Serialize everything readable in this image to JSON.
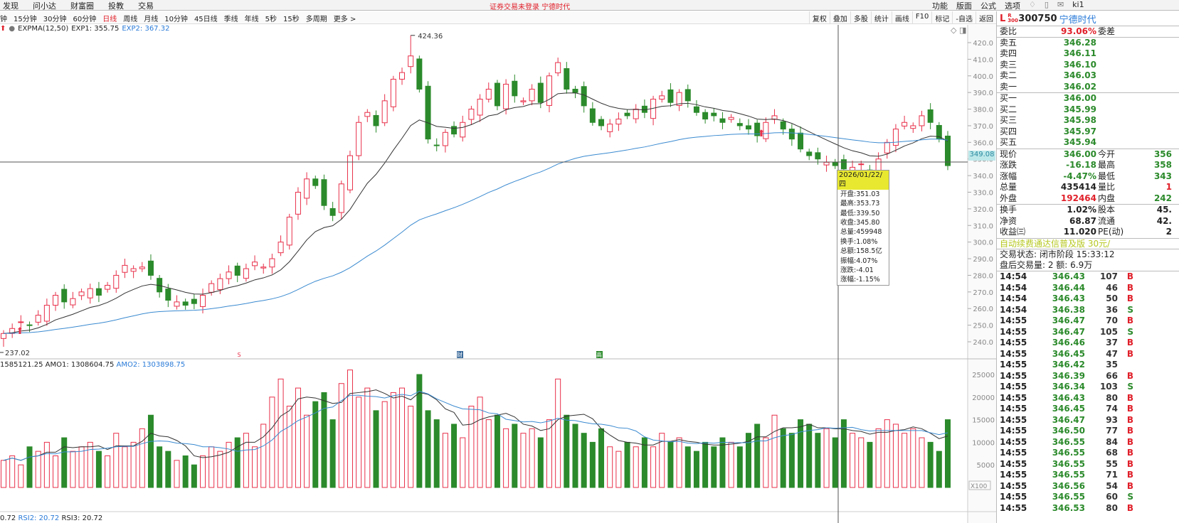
{
  "menu": {
    "left": [
      "发现",
      "问小达",
      "财富圈",
      "投教",
      "交易"
    ],
    "center": "证券交易未登录  宁德时代",
    "right": [
      "功能",
      "版面",
      "公式",
      "选项"
    ],
    "user": "ki1"
  },
  "periods": {
    "items": [
      "钟",
      "15分钟",
      "30分钟",
      "60分钟",
      "日线",
      "周线",
      "月线",
      "10分钟",
      "45日线",
      "季线",
      "年线",
      "5秒",
      "15秒",
      "多周期",
      "更多 >"
    ],
    "active": 4
  },
  "toolbar": [
    "复权",
    "叠加",
    "多股",
    "统计",
    "画线",
    "F10",
    "标记",
    "-自选",
    "返回"
  ],
  "indicator": {
    "name": "EXPMA(12,50)",
    "exp1": "EXP1: 355.75",
    "exp2": "EXP2: 367.32"
  },
  "volume_indicator": {
    "vol": "1585121.25",
    "amo1": "AMO1: 1308604.75",
    "amo2": "AMO2: 1303898.75"
  },
  "rsi": {
    "r1": "0.72",
    "r2": "RSI2: 20.72",
    "r3": "RSI3: 20.72"
  },
  "chart_data": {
    "type": "candlestick",
    "price_axis": {
      "min": 240,
      "max": 420,
      "step": 10,
      "ticks": [
        "420.0",
        "410.0",
        "400.0",
        "390.0",
        "380.0",
        "370.0",
        "360.0",
        "350.0",
        "340.0",
        "330.0",
        "320.0",
        "310.0",
        "300.0",
        "290.0",
        "280.0",
        "270.0",
        "260.0",
        "250.0",
        "240.0"
      ]
    },
    "volume_axis": {
      "ticks": [
        "25000",
        "20000",
        "15000",
        "10000",
        "5000"
      ],
      "unit": "X100"
    },
    "high_label": "424.36",
    "low_label": "237.02",
    "crosshair_price": "349.08",
    "closes": [
      245,
      248,
      252,
      250,
      256,
      262,
      268,
      264,
      266,
      270,
      272,
      268,
      274,
      280,
      286,
      284,
      285,
      280,
      270,
      265,
      264,
      262,
      263,
      268,
      275,
      278,
      282,
      280,
      284,
      288,
      285,
      290,
      300,
      315,
      330,
      338,
      334,
      322,
      316,
      335,
      352,
      372,
      378,
      370,
      385,
      398,
      402,
      412,
      392,
      362,
      358,
      366,
      365,
      372,
      380,
      386,
      392,
      382,
      395,
      388,
      385,
      392,
      384,
      400,
      408,
      392,
      390,
      382,
      372,
      370,
      371,
      374,
      376,
      380,
      378,
      386,
      388,
      384,
      390,
      385,
      378,
      374,
      376,
      372,
      375,
      370,
      368,
      364,
      372,
      376,
      368,
      362,
      356,
      352,
      350,
      348,
      346,
      344,
      345,
      347,
      342,
      350,
      360,
      368,
      372,
      370,
      376,
      372,
      362,
      346
    ],
    "volumes": [
      6000,
      7000,
      5000,
      9000,
      8000,
      10000,
      7000,
      11000,
      8000,
      9000,
      10000,
      8000,
      7000,
      12000,
      9000,
      10000,
      13000,
      16000,
      9000,
      8000,
      6000,
      7000,
      5000,
      7000,
      9000,
      8000,
      10000,
      11000,
      12000,
      9000,
      14000,
      20000,
      24000,
      18000,
      22000,
      16000,
      19000,
      21000,
      15000,
      23000,
      26000,
      20000,
      22000,
      17000,
      19000,
      21000,
      22000,
      18000,
      25000,
      17000,
      15000,
      12000,
      14000,
      11000,
      18000,
      20000,
      15000,
      16000,
      13000,
      14000,
      12000,
      13000,
      11000,
      15000,
      24000,
      16000,
      14000,
      12000,
      10000,
      13000,
      9000,
      8000,
      10000,
      9000,
      11000,
      9000,
      12000,
      10000,
      11000,
      9000,
      8000,
      10000,
      9000,
      11000,
      10000,
      9000,
      12000,
      14000,
      11000,
      16000,
      13000,
      12000,
      15000,
      14000,
      12000,
      13000,
      11000,
      15000,
      12000,
      11000,
      10000,
      13000,
      15000,
      14000,
      12000,
      13000,
      11000,
      10000,
      8000,
      15000
    ],
    "markers": [
      "S",
      "财",
      "高"
    ]
  },
  "tooltip": {
    "date": "2026/01/22/四",
    "lines": [
      "开盘:351.03",
      "最高:353.73",
      "最低:339.50",
      "收盘:345.80",
      "总量:459948",
      "换手:1.08%",
      "总额:158.5亿",
      "振幅:4.07%",
      "涨跌:-4.01",
      "涨幅:-1.15%"
    ]
  },
  "quote": {
    "code": "300750",
    "name": "宁德时代",
    "tag": "L",
    "sub": "R 300",
    "weibi": {
      "k": "委比",
      "v": "93.06%",
      "k2": "委差"
    },
    "sell": [
      {
        "k": "卖五",
        "v": "346.28"
      },
      {
        "k": "卖四",
        "v": "346.11"
      },
      {
        "k": "卖三",
        "v": "346.10"
      },
      {
        "k": "卖二",
        "v": "346.03"
      },
      {
        "k": "卖一",
        "v": "346.02"
      }
    ],
    "buy": [
      {
        "k": "买一",
        "v": "346.00"
      },
      {
        "k": "买二",
        "v": "345.99"
      },
      {
        "k": "买三",
        "v": "345.98"
      },
      {
        "k": "买四",
        "v": "345.97"
      },
      {
        "k": "买五",
        "v": "345.94"
      }
    ],
    "stats": [
      {
        "k": "现价",
        "v": "346.00",
        "k2": "今开",
        "v2": "356"
      },
      {
        "k": "涨跌",
        "v": "-16.18",
        "k2": "最高",
        "v2": "358"
      },
      {
        "k": "涨幅",
        "v": "-4.47%",
        "k2": "最低",
        "v2": "343"
      },
      {
        "k": "总量",
        "v": "435414",
        "k2": "量比",
        "v2": "1"
      },
      {
        "k": "外盘",
        "v": "192464",
        "k2": "内盘",
        "v2": "242"
      }
    ],
    "fund": [
      {
        "k": "换手",
        "v": "1.02%",
        "k2": "股本",
        "v2": "45."
      },
      {
        "k": "净资",
        "v": "68.87",
        "k2": "流通",
        "v2": "42."
      },
      {
        "k": "收益㈢",
        "v": "11.020",
        "k2": "PE(动)",
        "v2": "2"
      }
    ],
    "promo": "自动续费通达信普及版  30元/",
    "status": "交易状态: 闭市阶段  15:33:12",
    "after": "盘后交易量: 2  额: 6.9万",
    "ticks": [
      [
        "14:54",
        "346.43",
        "107",
        "B"
      ],
      [
        "14:54",
        "346.44",
        "46",
        "B"
      ],
      [
        "14:54",
        "346.43",
        "50",
        "B"
      ],
      [
        "14:54",
        "346.38",
        "36",
        "S"
      ],
      [
        "14:55",
        "346.47",
        "70",
        "B"
      ],
      [
        "14:55",
        "346.47",
        "105",
        "S"
      ],
      [
        "14:55",
        "346.46",
        "37",
        "B"
      ],
      [
        "14:55",
        "346.45",
        "47",
        "B"
      ],
      [
        "14:55",
        "346.42",
        "35",
        ""
      ],
      [
        "14:55",
        "346.39",
        "66",
        "B"
      ],
      [
        "14:55",
        "346.34",
        "103",
        "S"
      ],
      [
        "14:55",
        "346.43",
        "80",
        "B"
      ],
      [
        "14:55",
        "346.45",
        "74",
        "B"
      ],
      [
        "14:55",
        "346.47",
        "93",
        "B"
      ],
      [
        "14:55",
        "346.50",
        "77",
        "B"
      ],
      [
        "14:55",
        "346.55",
        "84",
        "B"
      ],
      [
        "14:55",
        "346.55",
        "68",
        "B"
      ],
      [
        "14:55",
        "346.55",
        "55",
        "B"
      ],
      [
        "14:55",
        "346.55",
        "71",
        "B"
      ],
      [
        "14:55",
        "346.56",
        "54",
        "B"
      ],
      [
        "14:55",
        "346.55",
        "60",
        "S"
      ],
      [
        "14:55",
        "346.53",
        "80",
        "B"
      ]
    ]
  },
  "colors": {
    "up": "#e8304a",
    "down": "#2b8a2b",
    "exp1": "#333333",
    "exp2": "#3a8ad0",
    "accent": "#e0202a"
  }
}
